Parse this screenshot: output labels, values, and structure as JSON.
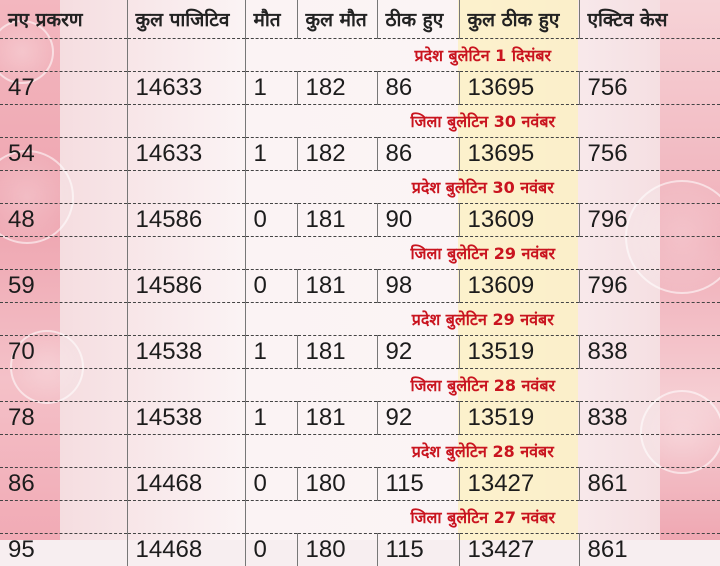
{
  "table": {
    "headers": [
      "नए प्रकरण",
      "कुल पाजिटिव",
      "मौत",
      "कुल मौत",
      "ठीक हुए",
      "कुल ठीक हुए",
      "एक्टिव केस"
    ],
    "sections": [
      {
        "bulletin": "प्रदेश बुलेटिन 1 दिसंबर",
        "row": [
          "47",
          "14633",
          "1",
          "182",
          "86",
          "13695",
          "756"
        ]
      },
      {
        "bulletin": "जिला बुलेटिन 30 नवंबर",
        "row": [
          "54",
          "14633",
          "1",
          "182",
          "86",
          "13695",
          "756"
        ]
      },
      {
        "bulletin": "प्रदेश बुलेटिन 30 नवंबर",
        "row": [
          "48",
          "14586",
          "0",
          "181",
          "90",
          "13609",
          "796"
        ]
      },
      {
        "bulletin": "जिला बुलेटिन 29 नवंबर",
        "row": [
          "59",
          "14586",
          "0",
          "181",
          "98",
          "13609",
          "796"
        ]
      },
      {
        "bulletin": "प्रदेश बुलेटिन 29 नवंबर",
        "row": [
          "70",
          "14538",
          "1",
          "181",
          "92",
          "13519",
          "838"
        ]
      },
      {
        "bulletin": "जिला बुलेटिन 28 नवंबर",
        "row": [
          "78",
          "14538",
          "1",
          "181",
          "92",
          "13519",
          "838"
        ]
      },
      {
        "bulletin": "प्रदेश बुलेटिन 28 नवंबर",
        "row": [
          "86",
          "14468",
          "0",
          "180",
          "115",
          "13427",
          "861"
        ]
      },
      {
        "bulletin": "जिला बुलेटिन 27 नवंबर",
        "row": [
          "95",
          "14468",
          "0",
          "180",
          "115",
          "13427",
          "861"
        ]
      }
    ]
  },
  "colors": {
    "bulletin_text": "#c9141f",
    "highlight_column": "#fbf0c4",
    "background_sides": "#f0aeb8"
  }
}
